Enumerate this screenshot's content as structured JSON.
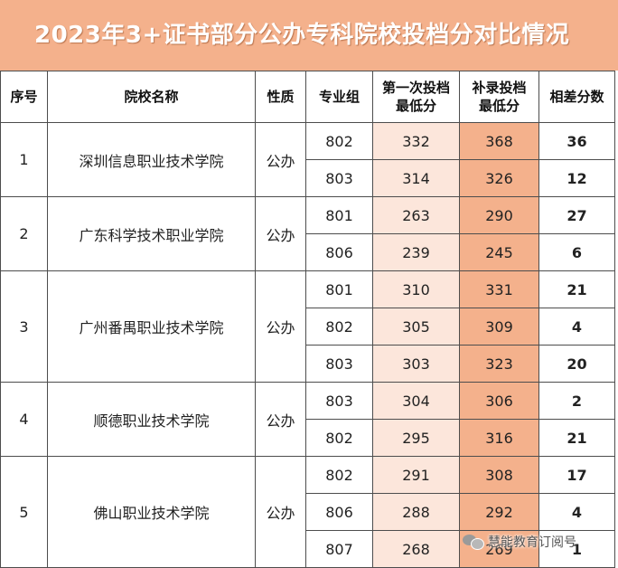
{
  "title": "2023年3+证书部分公办专科院校投档分对比情况",
  "header": {
    "index": "序号",
    "school": "院校名称",
    "nature": "性质",
    "major_group": "专业组",
    "first_line1": "第一次投档",
    "first_line2": "最低分",
    "supp_line1": "补录投档",
    "supp_line2": "最低分",
    "diff": "相差分数"
  },
  "rows": [
    {
      "index": "1",
      "school": "深圳信息职业技术学院",
      "nature": "公办",
      "groups": [
        {
          "group": "802",
          "first": "332",
          "supp": "368",
          "diff": "36"
        },
        {
          "group": "803",
          "first": "314",
          "supp": "326",
          "diff": "12"
        }
      ]
    },
    {
      "index": "2",
      "school": "广东科学技术职业学院",
      "nature": "公办",
      "groups": [
        {
          "group": "801",
          "first": "263",
          "supp": "290",
          "diff": "27"
        },
        {
          "group": "806",
          "first": "239",
          "supp": "245",
          "diff": "6"
        }
      ]
    },
    {
      "index": "3",
      "school": "广州番禺职业技术学院",
      "nature": "公办",
      "groups": [
        {
          "group": "801",
          "first": "310",
          "supp": "331",
          "diff": "21"
        },
        {
          "group": "802",
          "first": "305",
          "supp": "309",
          "diff": "4"
        },
        {
          "group": "803",
          "first": "303",
          "supp": "323",
          "diff": "20"
        }
      ]
    },
    {
      "index": "4",
      "school": "顺德职业技术学院",
      "nature": "公办",
      "groups": [
        {
          "group": "803",
          "first": "304",
          "supp": "306",
          "diff": "2"
        },
        {
          "group": "802",
          "first": "295",
          "supp": "316",
          "diff": "21"
        }
      ]
    },
    {
      "index": "5",
      "school": "佛山职业技术学院",
      "nature": "公办",
      "groups": [
        {
          "group": "802",
          "first": "291",
          "supp": "308",
          "diff": "17"
        },
        {
          "group": "806",
          "first": "288",
          "supp": "292",
          "diff": "4"
        },
        {
          "group": "807",
          "first": "268",
          "supp": "269",
          "diff": "1"
        }
      ]
    }
  ],
  "watermark": {
    "text": "慧能教育订阅号",
    "icon": "wechat-icon"
  },
  "colors": {
    "title_bg": "#f4b18c",
    "first_col_bg": "#fce6db",
    "supp_col_bg": "#f4b18c",
    "diff_text": "#e30000"
  }
}
